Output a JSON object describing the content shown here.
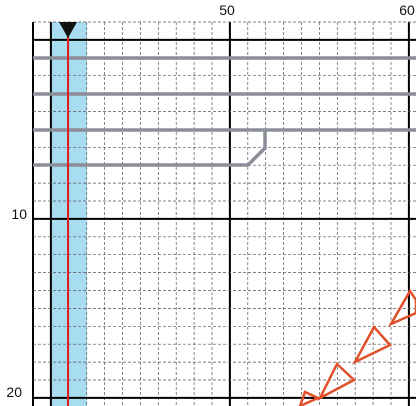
{
  "column_labels": [
    "50",
    "60"
  ],
  "row_labels": [
    "10",
    "20"
  ]
}
